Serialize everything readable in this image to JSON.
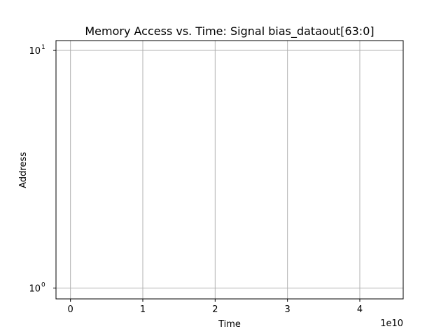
{
  "chart_data": {
    "type": "scatter",
    "title": "Memory Access vs. Time: Signal bias_dataout[63:0]",
    "xlabel": "Time",
    "ylabel": "Address",
    "x_offset_label": "1e10",
    "xlim": [
      -0.2,
      4.6
    ],
    "x_ticks": [
      0,
      1,
      2,
      3,
      4
    ],
    "x_tick_labels": [
      "0",
      "1",
      "2",
      "3",
      "4"
    ],
    "yscale": "log",
    "ylim": [
      0.9,
      11.0
    ],
    "y_ticks": [
      1,
      10
    ],
    "y_tick_labels": [
      {
        "base": "10",
        "exp": "0"
      },
      {
        "base": "10",
        "exp": "1"
      }
    ],
    "grid": true,
    "grid_color": "#b0b0b0",
    "series": []
  }
}
